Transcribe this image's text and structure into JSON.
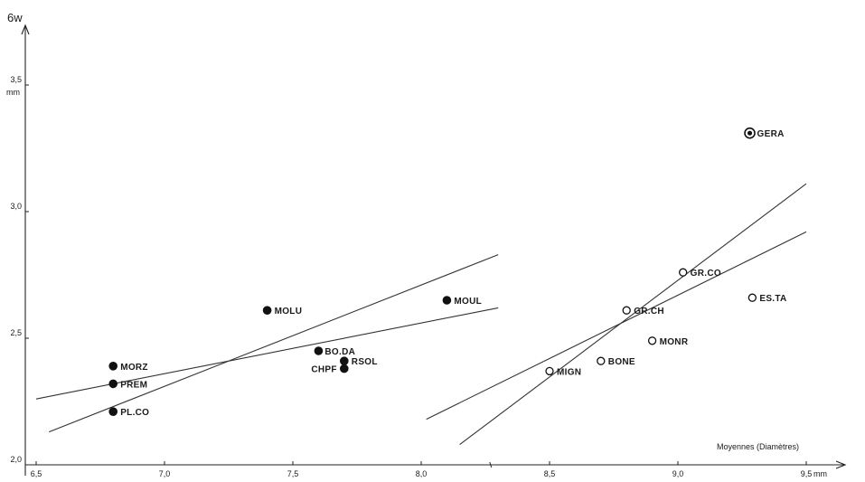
{
  "chart_data": {
    "type": "scatter",
    "title": "",
    "ylabel": "6w",
    "y_unit": "mm",
    "xlabel": "Moyennes (Diamètres)",
    "x_unit": "mm",
    "xlim": [
      6.5,
      9.5
    ],
    "ylim": [
      20,
      35
    ],
    "x_ticks": [
      {
        "value": 6.5,
        "label": "6,5"
      },
      {
        "value": 7.0,
        "label": "7,0"
      },
      {
        "value": 7.5,
        "label": "7,5"
      },
      {
        "value": 8.0,
        "label": "8,0"
      },
      {
        "value": 8.5,
        "label": "8,5"
      },
      {
        "value": 9.0,
        "label": "9,0"
      },
      {
        "value": 9.5,
        "label": "9,5"
      }
    ],
    "y_ticks": [
      {
        "value": 20,
        "label": "2,0"
      },
      {
        "value": 25,
        "label": "2,5"
      },
      {
        "value": 30,
        "label": "3,0"
      },
      {
        "value": 35,
        "label": "3,5"
      }
    ],
    "grid": false,
    "series": [
      {
        "marker": "filled",
        "points": [
          {
            "label": "MORZ",
            "x": 6.8,
            "y": 23.9
          },
          {
            "label": "PREM",
            "x": 6.8,
            "y": 23.2
          },
          {
            "label": "PL.CO",
            "x": 6.8,
            "y": 22.1
          },
          {
            "label": "MOLU",
            "x": 7.4,
            "y": 26.1
          },
          {
            "label": "BO.DA",
            "x": 7.6,
            "y": 24.5
          },
          {
            "label": "RSOL",
            "x": 7.7,
            "y": 24.1
          },
          {
            "label": "CHPF",
            "x": 7.7,
            "y": 23.8
          },
          {
            "label": "MOUL",
            "x": 8.1,
            "y": 26.5
          }
        ],
        "fit_lines": [
          {
            "x": [
              6.5,
              8.3
            ],
            "y": [
              22.6,
              26.2
            ]
          },
          {
            "x": [
              6.55,
              8.3
            ],
            "y": [
              21.3,
              28.3
            ]
          }
        ]
      },
      {
        "marker": "open",
        "points": [
          {
            "label": "GR.CO",
            "x": 9.02,
            "y": 27.6
          },
          {
            "label": "ES.TA",
            "x": 9.29,
            "y": 26.6
          },
          {
            "label": "GR.CH",
            "x": 8.8,
            "y": 26.1
          },
          {
            "label": "MONR",
            "x": 8.9,
            "y": 24.9
          },
          {
            "label": "BONE",
            "x": 8.7,
            "y": 24.1
          },
          {
            "label": "MIGN",
            "x": 8.5,
            "y": 23.7
          }
        ],
        "fit_lines": [
          {
            "x": [
              8.02,
              9.5
            ],
            "y": [
              21.8,
              29.2
            ]
          },
          {
            "x": [
              8.15,
              9.5
            ],
            "y": [
              20.8,
              31.1
            ]
          }
        ]
      },
      {
        "marker": "ringed",
        "points": [
          {
            "label": "GERA",
            "x": 9.28,
            "y": 33.1
          }
        ],
        "fit_lines": []
      }
    ]
  }
}
